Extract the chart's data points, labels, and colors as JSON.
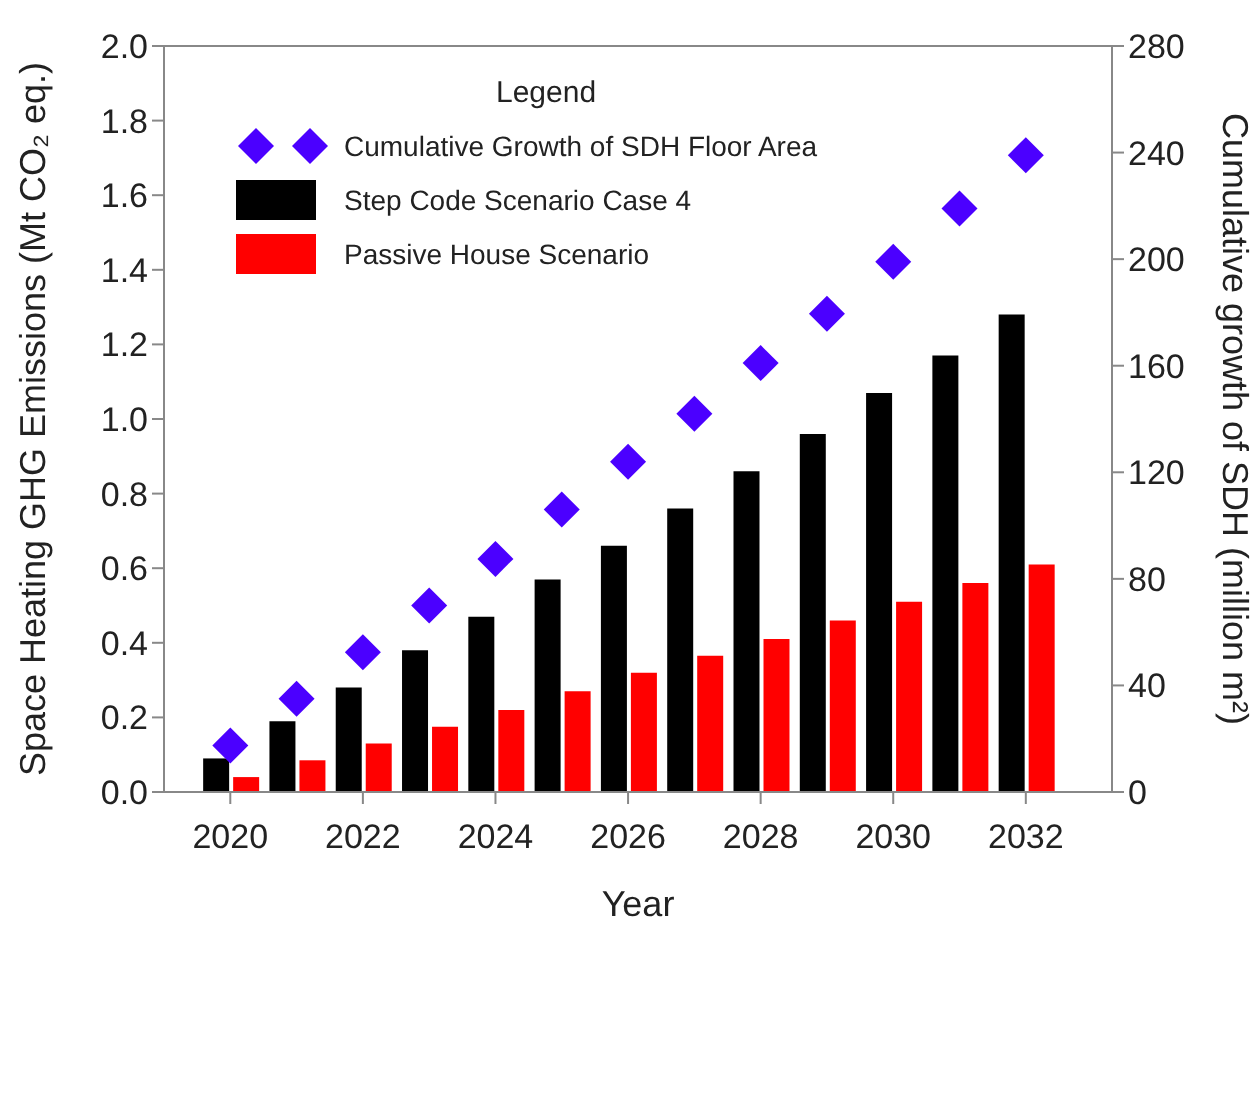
{
  "chart_data": {
    "type": "bar",
    "xlabel": "Year",
    "ylabel": "Space Heating GHG Emissions (Mt CO₂ eq.)",
    "y2label": "Cumulative growth of SDH (million m²)",
    "legend_title": "Legend",
    "x": [
      2020,
      2021,
      2022,
      2023,
      2024,
      2025,
      2026,
      2027,
      2028,
      2029,
      2030,
      2031,
      2032
    ],
    "series": [
      {
        "name": "Cumulative Growth of SDH Floor Area",
        "type": "scatter",
        "axis": "y2",
        "marker": "diamond",
        "color": "#4b00ff",
        "values": [
          17.5,
          35,
          52.5,
          70,
          87.5,
          106,
          124,
          142,
          161,
          179.5,
          199,
          219,
          239
        ]
      },
      {
        "name": "Step Code Scenario Case 4",
        "color": "#000000",
        "values": [
          0.09,
          0.19,
          0.28,
          0.38,
          0.47,
          0.57,
          0.66,
          0.76,
          0.86,
          0.96,
          1.07,
          1.17,
          1.28
        ]
      },
      {
        "name": "Passive House Scenario",
        "color": "#ff0000",
        "values": [
          0.04,
          0.085,
          0.13,
          0.175,
          0.22,
          0.27,
          0.32,
          0.365,
          0.41,
          0.46,
          0.51,
          0.56,
          0.61
        ]
      }
    ],
    "xlim": [
      2019,
      2033.3
    ],
    "xticks": [
      2020,
      2022,
      2024,
      2026,
      2028,
      2030,
      2032
    ],
    "ylim": [
      0,
      2
    ],
    "yticks": [
      {
        "value": 0,
        "label": "0.0"
      },
      0.2,
      0.4,
      0.6,
      0.8,
      {
        "value": 1,
        "label": "1.0"
      },
      1.2,
      1.4,
      1.6,
      1.8,
      {
        "value": 2,
        "label": "2.0"
      }
    ],
    "y2lim": [
      0,
      280
    ],
    "y2ticks": [
      0,
      40,
      80,
      120,
      160,
      200,
      240,
      280
    ],
    "grid": false,
    "legend": "top left"
  }
}
